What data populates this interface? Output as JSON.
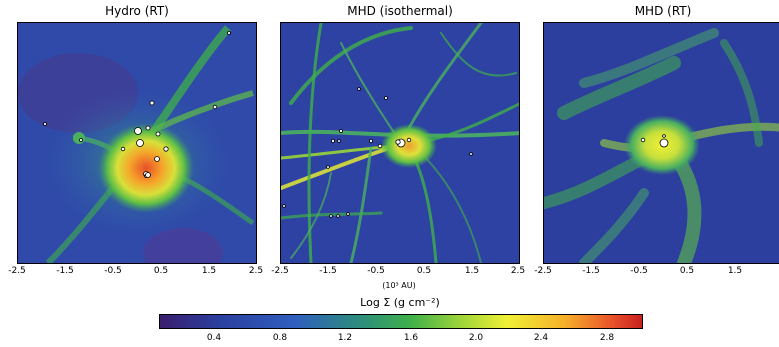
{
  "panels": [
    {
      "title": "Hydro (RT)"
    },
    {
      "title": "MHD (isothermal)"
    },
    {
      "title": "MHD (RT)"
    }
  ],
  "axis": {
    "ticks": [
      "-2.5",
      "-1.5",
      "-0.5",
      "0.5",
      "1.5",
      "2.5"
    ],
    "unit_label": "(10³ AU)"
  },
  "colorbar": {
    "title": "Log Σ (g cm⁻²)",
    "ticks": [
      "0.4",
      "0.8",
      "1.2",
      "1.6",
      "2.0",
      "2.4",
      "2.8"
    ]
  }
}
